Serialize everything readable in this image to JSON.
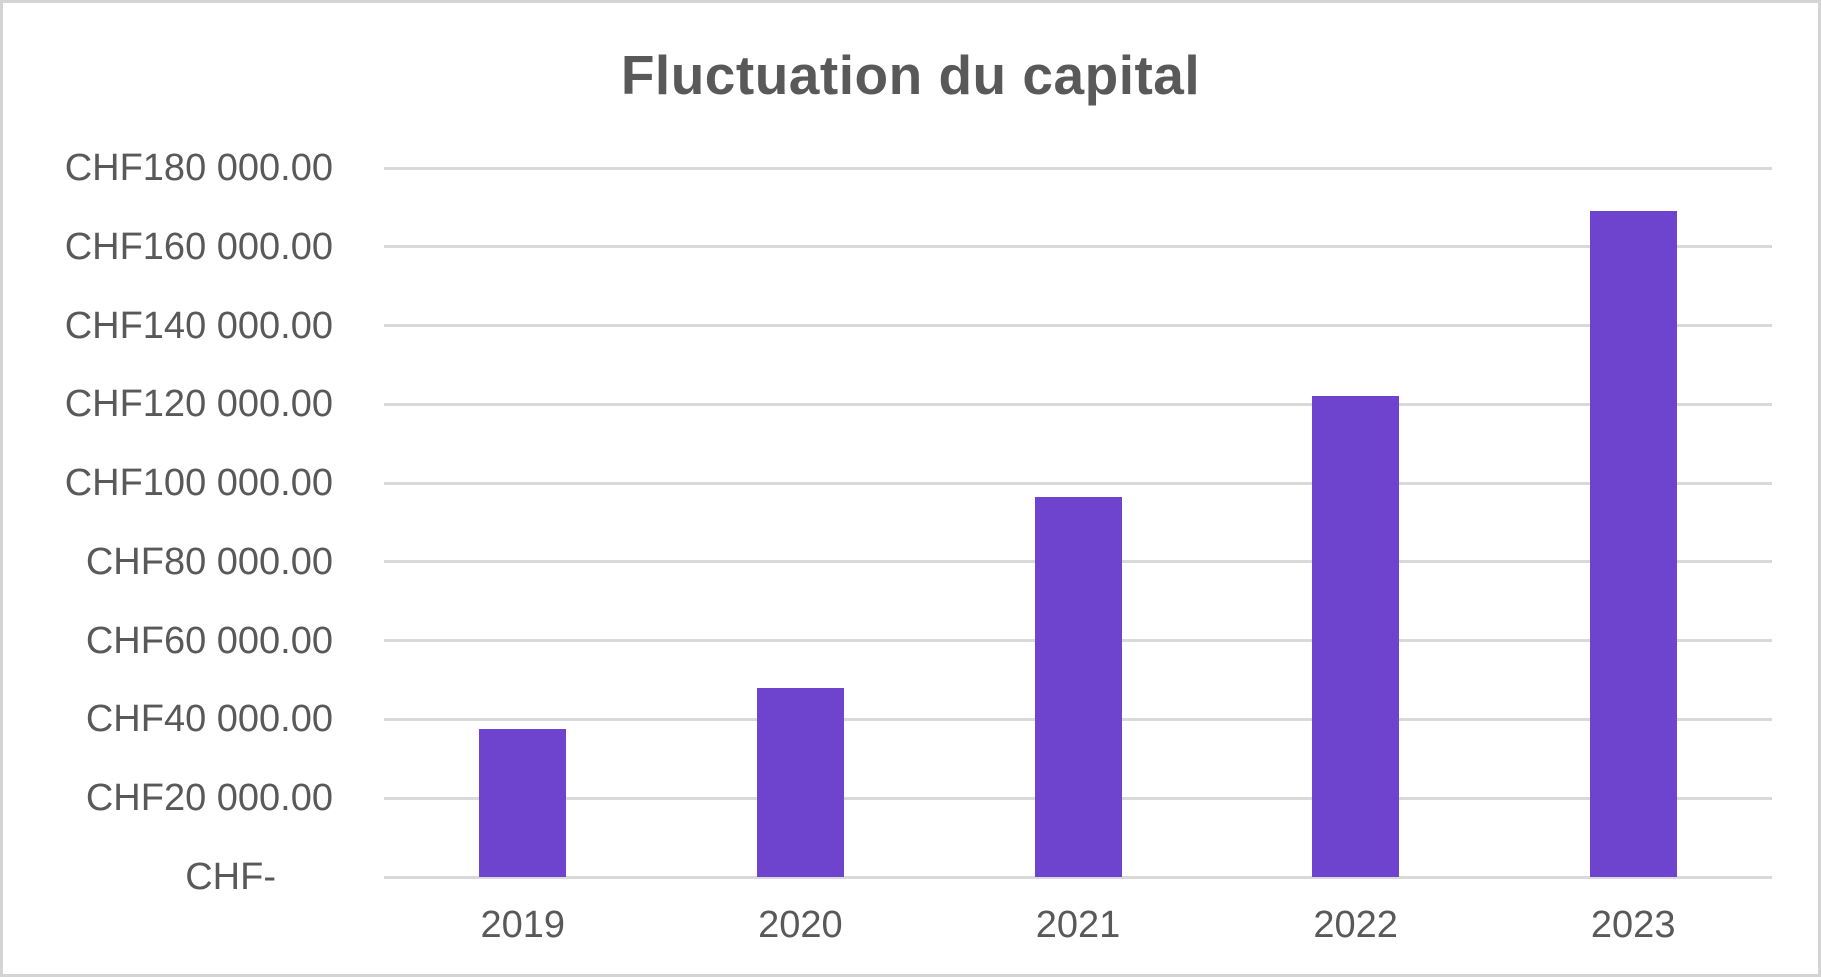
{
  "colors": {
    "bar_fill": "#6E43CE",
    "gridline": "#D9D9D9",
    "axis_text": "#595959",
    "title_text": "#595959",
    "frame_border": "#D4D4D4",
    "background": "#FFFFFF"
  },
  "chart_data": {
    "type": "bar",
    "title": "Fluctuation du capital",
    "categories": [
      "2019",
      "2020",
      "2021",
      "2022",
      "2023"
    ],
    "values": [
      37500,
      48000,
      96500,
      122000,
      169000
    ],
    "currency": "CHF",
    "xlabel": "",
    "ylabel": "",
    "ylim": [
      0,
      180000
    ],
    "y_tick_step": 20000,
    "grid": true,
    "legend": false,
    "y_ticks": [
      {
        "label": "CHF180 000.00",
        "value": 180000
      },
      {
        "label": "CHF160 000.00",
        "value": 160000
      },
      {
        "label": "CHF140 000.00",
        "value": 140000
      },
      {
        "label": "CHF120 000.00",
        "value": 120000
      },
      {
        "label": "CHF100 000.00",
        "value": 100000
      },
      {
        "label": "CHF80 000.00",
        "value": 80000
      },
      {
        "label": "CHF60 000.00",
        "value": 60000
      },
      {
        "label": "CHF40 000.00",
        "value": 40000
      },
      {
        "label": "CHF20 000.00",
        "value": 20000
      },
      {
        "label": "CHF-",
        "value": 0
      }
    ]
  }
}
